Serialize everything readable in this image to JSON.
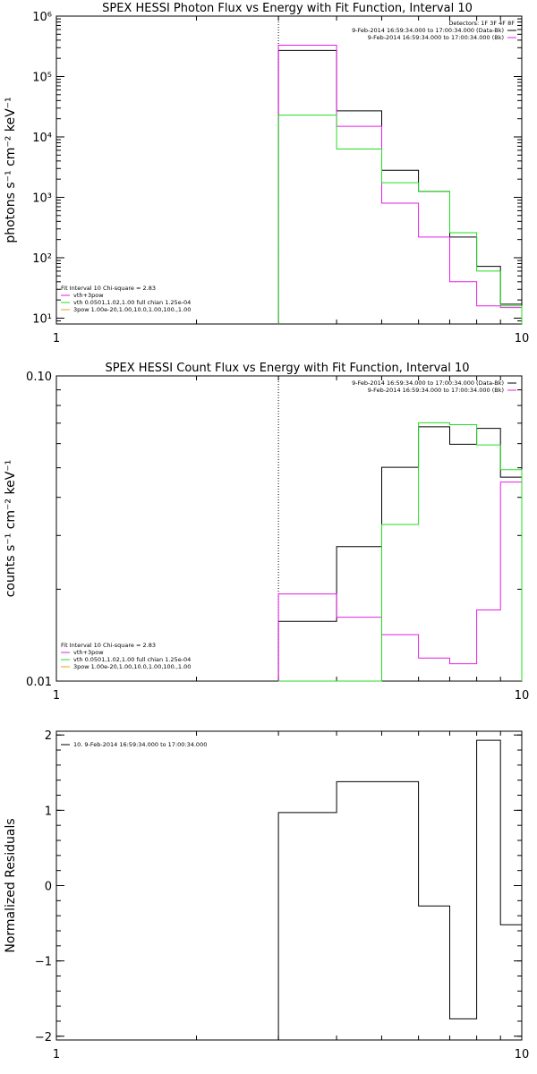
{
  "colors": {
    "black": "#000000",
    "magenta": "#e61ee6",
    "green": "#22dd22",
    "orange": "#e6a020"
  },
  "chart_data": [
    {
      "type": "line",
      "title": "SPEX HESSI Photon Flux vs Energy with Fit Function, Interval 10",
      "ylabel": "photons s⁻¹ cm⁻² keV⁻¹",
      "xscale": "log",
      "yscale": "log",
      "xlim": [
        1,
        10
      ],
      "ylim": [
        8,
        1000000
      ],
      "x_ticks": [
        {
          "v": 1,
          "label": "1"
        },
        {
          "v": 10,
          "label": "10"
        }
      ],
      "y_ticks": [
        {
          "v": 10,
          "label": "10¹"
        },
        {
          "v": 100,
          "label": "10²"
        },
        {
          "v": 1000,
          "label": "10³"
        },
        {
          "v": 10000,
          "label": "10⁴"
        },
        {
          "v": 100000,
          "label": "10⁵"
        },
        {
          "v": 1000000,
          "label": "10⁶"
        }
      ],
      "vline_x": 3.0,
      "bin_edges": [
        3.0,
        4.0,
        5.0,
        6.0,
        7.0,
        8.0,
        9.0,
        10.0
      ],
      "series": [
        {
          "color": "black",
          "values": [
            270000,
            27000,
            2800,
            1250,
            220,
            72,
            17
          ]
        },
        {
          "color": "magenta",
          "values": [
            330000,
            15000,
            800,
            220,
            40,
            16,
            15
          ]
        },
        {
          "color": "green",
          "values": [
            23000,
            6300,
            1750,
            1250,
            260,
            60,
            16
          ]
        }
      ],
      "legend_right": {
        "header": "Detectors: 1F 3F 4F 8F",
        "entries": [
          {
            "color": "black",
            "label": "9-Feb-2014 16:59:34.000 to 17:00:34.000 (Data-Bk)"
          },
          {
            "color": "magenta",
            "label": "9-Feb-2014 16:59:34.000 to 17:00:34.000 (Bk)"
          }
        ]
      },
      "legend_left": {
        "header": "Fit Interval 10   Chi-square = 2.83",
        "entries": [
          {
            "color": "magenta",
            "label": "vth+3pow"
          },
          {
            "color": "green",
            "label": "vth 0.0501,1.02,1.00  full chian 1.25e-04"
          },
          {
            "color": "orange",
            "label": "3pow 1.00e-20,1.00,10.0,1.00,100.,1.00"
          }
        ]
      }
    },
    {
      "type": "line",
      "title": "SPEX HESSI Count Flux vs Energy with Fit Function, Interval 10",
      "ylabel": "counts s⁻¹ cm⁻² keV⁻¹",
      "xscale": "log",
      "yscale": "log",
      "xlim": [
        1,
        10
      ],
      "ylim": [
        0.01,
        0.1
      ],
      "x_ticks": [
        {
          "v": 1,
          "label": "1"
        },
        {
          "v": 10,
          "label": "10"
        }
      ],
      "y_ticks": [
        {
          "v": 0.01,
          "label": "0.01"
        },
        {
          "v": 0.1,
          "label": "0.10"
        }
      ],
      "vline_x": 3.0,
      "bin_edges": [
        3.0,
        4.0,
        5.0,
        6.0,
        7.0,
        8.0,
        9.0,
        10.0
      ],
      "series": [
        {
          "color": "black",
          "values": [
            0.0157,
            0.0276,
            0.0502,
            0.0681,
            0.0597,
            0.0673,
            0.0466
          ]
        },
        {
          "color": "magenta",
          "values": [
            0.0193,
            0.0162,
            0.0142,
            0.0119,
            0.0114,
            0.0171,
            0.0449
          ]
        },
        {
          "color": "green",
          "values": [
            0.0,
            0.0,
            0.0326,
            0.0702,
            0.0692,
            0.0594,
            0.0493
          ]
        }
      ],
      "legend_right": {
        "entries": [
          {
            "color": "black",
            "label": "9-Feb-2014 16:59:34.000 to 17:00:34.000 (Data-Bk)"
          },
          {
            "color": "magenta",
            "label": "9-Feb-2014 16:59:34.000 to 17:00:34.000 (Bk)"
          }
        ]
      },
      "legend_left": {
        "header": "Fit Interval 10   Chi-square = 2.83",
        "entries": [
          {
            "color": "magenta",
            "label": "vth+3pow"
          },
          {
            "color": "green",
            "label": "vth 0.0501,1.02,1.00  full chian 1.25e-04"
          },
          {
            "color": "orange",
            "label": "3pow 1.00e-20,1.00,10.0,1.00,100.,1.00"
          }
        ]
      }
    },
    {
      "type": "line",
      "title": "",
      "ylabel": "Normalized Residuals",
      "xscale": "log",
      "yscale": "linear",
      "xlim": [
        1,
        10
      ],
      "ylim": [
        -2.05,
        2.05
      ],
      "x_ticks": [
        {
          "v": 1,
          "label": "1"
        },
        {
          "v": 10,
          "label": "10"
        }
      ],
      "y_ticks": [
        {
          "v": -2,
          "label": "−2"
        },
        {
          "v": -1,
          "label": "−1"
        },
        {
          "v": 0,
          "label": "0"
        },
        {
          "v": 1,
          "label": "1"
        },
        {
          "v": 2,
          "label": "2"
        }
      ],
      "bin_edges": [
        3.0,
        4.0,
        5.0,
        6.0,
        7.0,
        8.0,
        9.0,
        10.0
      ],
      "series": [
        {
          "color": "black",
          "values": [
            0.97,
            1.38,
            1.38,
            -0.27,
            -1.77,
            1.93,
            -0.52
          ]
        }
      ],
      "legend_left": {
        "entries": [
          {
            "color": "black",
            "label": "10.  9-Feb-2014 16:59:34.000 to 17:00:34.000"
          }
        ]
      }
    }
  ]
}
